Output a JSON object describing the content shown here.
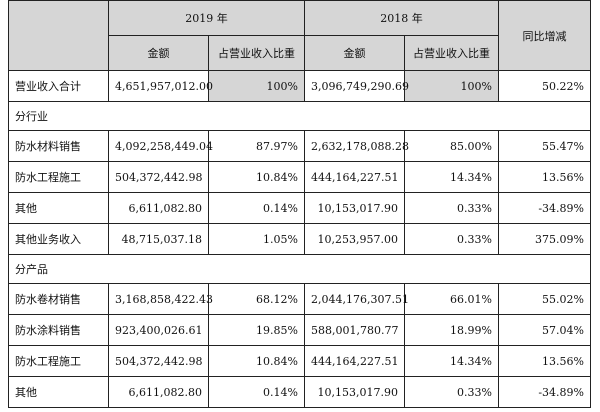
{
  "header": {
    "year_2019": "2019 年",
    "year_2018": "2018 年",
    "yoy": "同比增减",
    "amount": "金额",
    "ratio": "占营业收入比重"
  },
  "total": {
    "label": "营业收入合计",
    "amount_2019": "4,651,957,012.00",
    "ratio_2019": "100%",
    "amount_2018": "3,096,749,290.69",
    "ratio_2018": "100%",
    "yoy": "50.22%"
  },
  "section_industry": "分行业",
  "industry_rows": [
    {
      "label": "防水材料销售",
      "amount_2019": "4,092,258,449.04",
      "ratio_2019": "87.97%",
      "amount_2018": "2,632,178,088.28",
      "ratio_2018": "85.00%",
      "yoy": "55.47%"
    },
    {
      "label": "防水工程施工",
      "amount_2019": "504,372,442.98",
      "ratio_2019": "10.84%",
      "amount_2018": "444,164,227.51",
      "ratio_2018": "14.34%",
      "yoy": "13.56%"
    },
    {
      "label": "其他",
      "amount_2019": "6,611,082.80",
      "ratio_2019": "0.14%",
      "amount_2018": "10,153,017.90",
      "ratio_2018": "0.33%",
      "yoy": "-34.89%"
    },
    {
      "label": "其他业务收入",
      "amount_2019": "48,715,037.18",
      "ratio_2019": "1.05%",
      "amount_2018": "10,253,957.00",
      "ratio_2018": "0.33%",
      "yoy": "375.09%"
    }
  ],
  "section_product": "分产品",
  "product_rows": [
    {
      "label": "防水卷材销售",
      "amount_2019": "3,168,858,422.43",
      "ratio_2019": "68.12%",
      "amount_2018": "2,044,176,307.51",
      "ratio_2018": "66.01%",
      "yoy": "55.02%"
    },
    {
      "label": "防水涂料销售",
      "amount_2019": "923,400,026.61",
      "ratio_2019": "19.85%",
      "amount_2018": "588,001,780.77",
      "ratio_2018": "18.99%",
      "yoy": "57.04%"
    },
    {
      "label": "防水工程施工",
      "amount_2019": "504,372,442.98",
      "ratio_2019": "10.84%",
      "amount_2018": "444,164,227.51",
      "ratio_2018": "14.34%",
      "yoy": "13.56%"
    },
    {
      "label": "其他",
      "amount_2019": "6,611,082.80",
      "ratio_2019": "0.14%",
      "amount_2018": "10,153,017.90",
      "ratio_2018": "0.33%",
      "yoy": "-34.89%"
    }
  ]
}
